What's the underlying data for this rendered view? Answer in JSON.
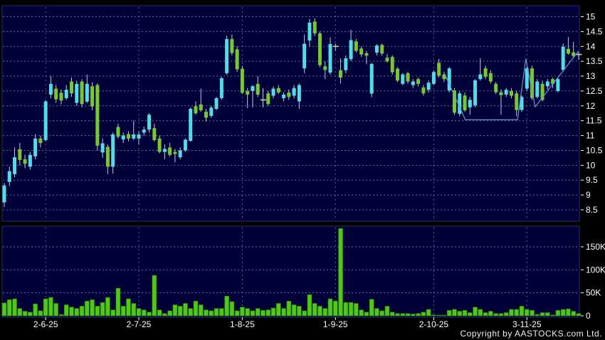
{
  "footer": {
    "copyright": "Copyright by AASTOCKS.com Ltd."
  },
  "colors": {
    "background": "#000000",
    "pane_bg": "#000038",
    "pane_border": "#2b2b6b",
    "grid": "#8888aa",
    "up_candle": "#52dde6",
    "down_candle": "#76c832",
    "doji": "#d8d8d8",
    "wick": "#c8c8d8",
    "volume_bar": "#50c818",
    "volume_bar_edge": "#237a00",
    "trendline": "#6898d0",
    "axis_text": "#ffffff"
  },
  "chart_data": {
    "type": "candlestick_with_volume",
    "title": "",
    "legend": [],
    "grid": true,
    "price_axis": {
      "side": "right",
      "min": 8.5,
      "max": 15,
      "step": 0.5,
      "ticks": [
        {
          "v": 15,
          "label": "15"
        },
        {
          "v": 14.5,
          "label": "14.5"
        },
        {
          "v": 14,
          "label": "14"
        },
        {
          "v": 13.5,
          "label": "13.5"
        },
        {
          "v": 13,
          "label": "13"
        },
        {
          "v": 12.5,
          "label": "12.5"
        },
        {
          "v": 12,
          "label": "12"
        },
        {
          "v": 11.5,
          "label": "11.5"
        },
        {
          "v": 11,
          "label": "11"
        },
        {
          "v": 10.5,
          "label": "10.5"
        },
        {
          "v": 10,
          "label": "10"
        },
        {
          "v": 9.5,
          "label": "9.5"
        },
        {
          "v": 9,
          "label": "9"
        },
        {
          "v": 8.5,
          "label": "8.5"
        }
      ]
    },
    "volume_axis": {
      "side": "right",
      "min": 0,
      "max_k": 150,
      "ticks": [
        {
          "v": 150,
          "label": "150K"
        },
        {
          "v": 100,
          "label": "100K"
        },
        {
          "v": 50,
          "label": "50K"
        },
        {
          "v": 0,
          "label": "0"
        }
      ]
    },
    "x_ticks": [
      {
        "i": 8,
        "label": "2-6-25"
      },
      {
        "i": 26,
        "label": "2-7-25"
      },
      {
        "i": 46,
        "label": "1-8-25"
      },
      {
        "i": 64,
        "label": "1-9-25"
      },
      {
        "i": 83,
        "label": "2-10-25"
      },
      {
        "i": 101,
        "label": "3-11-25"
      }
    ],
    "candles_format": [
      "open",
      "high",
      "low",
      "close",
      "volume_k"
    ],
    "candles": [
      [
        8.75,
        9.4,
        8.6,
        9.32,
        28
      ],
      [
        9.44,
        9.95,
        9.3,
        9.8,
        35
      ],
      [
        9.7,
        10.6,
        9.6,
        10.27,
        37
      ],
      [
        10.54,
        10.75,
        10.0,
        10.18,
        16
      ],
      [
        10.2,
        10.35,
        9.9,
        10.05,
        10
      ],
      [
        9.95,
        10.45,
        9.85,
        10.35,
        8
      ],
      [
        10.3,
        11.05,
        10.2,
        10.9,
        26
      ],
      [
        10.9,
        11.0,
        10.6,
        10.75,
        11
      ],
      [
        10.85,
        12.2,
        10.8,
        12.15,
        37
      ],
      [
        12.38,
        13.0,
        12.25,
        12.74,
        40
      ],
      [
        12.58,
        12.7,
        12.1,
        12.22,
        27
      ],
      [
        12.44,
        12.55,
        12.05,
        12.18,
        3
      ],
      [
        12.26,
        12.7,
        12.2,
        12.54,
        24
      ],
      [
        12.82,
        12.95,
        12.3,
        12.42,
        19
      ],
      [
        12.1,
        12.85,
        12.0,
        12.74,
        16
      ],
      [
        12.82,
        12.9,
        11.95,
        12.06,
        21
      ],
      [
        12.14,
        13.05,
        12.1,
        12.74,
        32
      ],
      [
        12.66,
        12.8,
        11.85,
        11.98,
        35
      ],
      [
        12.7,
        12.76,
        10.5,
        10.66,
        21
      ],
      [
        10.43,
        10.9,
        10.25,
        10.74,
        29
      ],
      [
        10.62,
        10.7,
        9.7,
        9.95,
        40
      ],
      [
        9.95,
        11.1,
        9.72,
        11.04,
        13
      ],
      [
        11.29,
        11.4,
        10.9,
        10.96,
        60
      ],
      [
        10.87,
        11.1,
        10.75,
        11.0,
        21
      ],
      [
        11.05,
        11.15,
        10.8,
        10.9,
        37
      ],
      [
        10.9,
        11.5,
        10.85,
        11.04,
        27
      ],
      [
        10.9,
        11.15,
        10.7,
        11.04,
        16
      ],
      [
        11.1,
        11.3,
        11.0,
        11.2,
        13
      ],
      [
        11.2,
        11.75,
        11.1,
        11.7,
        8
      ],
      [
        11.25,
        11.4,
        10.8,
        10.85,
        88
      ],
      [
        10.9,
        11.0,
        10.4,
        10.45,
        13
      ],
      [
        10.45,
        10.7,
        10.2,
        10.55,
        5
      ],
      [
        10.6,
        10.75,
        10.3,
        10.35,
        11
      ],
      [
        10.45,
        10.55,
        10.1,
        10.38,
        24
      ],
      [
        10.27,
        10.6,
        10.2,
        10.5,
        21
      ],
      [
        10.5,
        10.9,
        10.45,
        10.86,
        27
      ],
      [
        10.82,
        11.95,
        10.8,
        11.9,
        16
      ],
      [
        11.99,
        12.15,
        11.7,
        11.75,
        32
      ],
      [
        12.05,
        12.58,
        11.8,
        11.85,
        24
      ],
      [
        11.8,
        11.9,
        11.47,
        11.6,
        13
      ],
      [
        11.66,
        12.0,
        11.6,
        11.94,
        11
      ],
      [
        11.9,
        12.3,
        11.85,
        12.26,
        16
      ],
      [
        12.26,
        12.98,
        12.2,
        12.93,
        16
      ],
      [
        13.1,
        14.36,
        13.05,
        14.25,
        43
      ],
      [
        14.25,
        14.4,
        13.7,
        13.78,
        31
      ],
      [
        13.9,
        14.0,
        13.15,
        13.23,
        11
      ],
      [
        13.25,
        13.35,
        12.4,
        12.44,
        19
      ],
      [
        12.5,
        12.6,
        11.93,
        12.38,
        16
      ],
      [
        12.5,
        12.7,
        11.95,
        12.66,
        11
      ],
      [
        12.74,
        13.0,
        12.3,
        12.38,
        16
      ],
      [
        12.2,
        12.6,
        11.95,
        12.2,
        12
      ],
      [
        12.42,
        12.5,
        12.0,
        12.06,
        13
      ],
      [
        12.34,
        12.65,
        12.25,
        12.58,
        17
      ],
      [
        12.6,
        12.7,
        12.4,
        12.45,
        27
      ],
      [
        12.26,
        12.45,
        12.15,
        12.38,
        16
      ],
      [
        12.45,
        12.55,
        12.2,
        12.3,
        32
      ],
      [
        12.34,
        12.7,
        12.25,
        12.6,
        24
      ],
      [
        12.15,
        12.75,
        11.9,
        12.7,
        21
      ],
      [
        13.26,
        14.4,
        13.1,
        14.09,
        11
      ],
      [
        14.2,
        14.93,
        14.0,
        14.8,
        46
      ],
      [
        14.84,
        14.95,
        14.35,
        14.44,
        27
      ],
      [
        14.44,
        14.5,
        13.3,
        13.37,
        21
      ],
      [
        13.33,
        13.5,
        12.9,
        13.21,
        16
      ],
      [
        13.12,
        14.3,
        13.05,
        14.08,
        37
      ],
      [
        14.0,
        14.1,
        13.85,
        14.0,
        32
      ],
      [
        13.2,
        13.6,
        12.75,
        12.95,
        190
      ],
      [
        13.2,
        13.7,
        13.1,
        13.6,
        29
      ],
      [
        13.57,
        14.56,
        13.5,
        14.21,
        29
      ],
      [
        14.17,
        14.25,
        13.8,
        13.85,
        27
      ],
      [
        13.93,
        14.0,
        13.65,
        13.73,
        13
      ],
      [
        13.77,
        13.85,
        13.4,
        13.69,
        8
      ],
      [
        12.41,
        13.45,
        12.29,
        13.41,
        36
      ],
      [
        13.79,
        14.08,
        13.7,
        14.03,
        16
      ],
      [
        14.05,
        14.1,
        13.7,
        13.76,
        11
      ],
      [
        13.62,
        13.75,
        13.45,
        13.5,
        21
      ],
      [
        13.65,
        13.7,
        13.05,
        13.13,
        8
      ],
      [
        13.25,
        13.3,
        12.8,
        12.85,
        5
      ],
      [
        12.74,
        13.1,
        12.7,
        13.06,
        5
      ],
      [
        13.1,
        13.15,
        12.75,
        12.82,
        5
      ],
      [
        12.7,
        12.9,
        12.6,
        12.82,
        4
      ],
      [
        12.9,
        12.95,
        12.65,
        12.74,
        5
      ],
      [
        12.62,
        12.7,
        12.35,
        12.42,
        8
      ],
      [
        12.54,
        12.85,
        12.45,
        12.78,
        14
      ],
      [
        12.74,
        13.2,
        12.7,
        13.14,
        2
      ],
      [
        13.45,
        13.58,
        12.95,
        13.02,
        1
      ],
      [
        13.06,
        13.15,
        12.8,
        12.9,
        1
      ],
      [
        12.52,
        13.3,
        12.45,
        13.26,
        12
      ],
      [
        12.52,
        12.6,
        11.7,
        11.77,
        14
      ],
      [
        11.73,
        12.5,
        11.65,
        12.42,
        10
      ],
      [
        12.35,
        12.45,
        11.8,
        11.85,
        12
      ],
      [
        11.95,
        12.3,
        11.7,
        12.2,
        7
      ],
      [
        12.02,
        12.9,
        11.95,
        12.86,
        19
      ],
      [
        12.9,
        13.6,
        12.85,
        13.06,
        14
      ],
      [
        13.26,
        13.35,
        12.9,
        12.98,
        7
      ],
      [
        13.1,
        13.2,
        12.75,
        12.82,
        10
      ],
      [
        12.74,
        12.8,
        12.4,
        12.46,
        5
      ],
      [
        12.46,
        12.55,
        11.7,
        12.36,
        5
      ],
      [
        12.38,
        12.6,
        12.3,
        12.54,
        7
      ],
      [
        12.5,
        12.6,
        12.25,
        12.34,
        14
      ],
      [
        12.42,
        12.5,
        11.65,
        11.86,
        14
      ],
      [
        11.86,
        12.35,
        11.8,
        12.3,
        21
      ],
      [
        12.58,
        13.3,
        12.5,
        13.26,
        14
      ],
      [
        13.26,
        13.35,
        12.2,
        12.26,
        12
      ],
      [
        12.3,
        12.9,
        12.25,
        12.82,
        3
      ],
      [
        12.74,
        12.85,
        12.15,
        12.2,
        7
      ],
      [
        12.66,
        12.9,
        12.55,
        12.82,
        7
      ],
      [
        12.9,
        12.95,
        12.6,
        12.74,
        2
      ],
      [
        12.5,
        12.95,
        12.45,
        12.9,
        12
      ],
      [
        13.21,
        14.1,
        13.15,
        13.99,
        14
      ],
      [
        13.92,
        14.32,
        13.72,
        13.76,
        15
      ],
      [
        13.8,
        14.16,
        13.6,
        13.68,
        10
      ],
      [
        13.73,
        13.8,
        13.55,
        13.73,
        5
      ]
    ],
    "trendline": {
      "points_index_price": [
        [
          85.3,
          13.0
        ],
        [
          89.1,
          11.53
        ],
        [
          99.2,
          11.53
        ],
        [
          100.8,
          13.58
        ],
        [
          102.6,
          11.97
        ],
        [
          111,
          13.85
        ]
      ]
    }
  }
}
